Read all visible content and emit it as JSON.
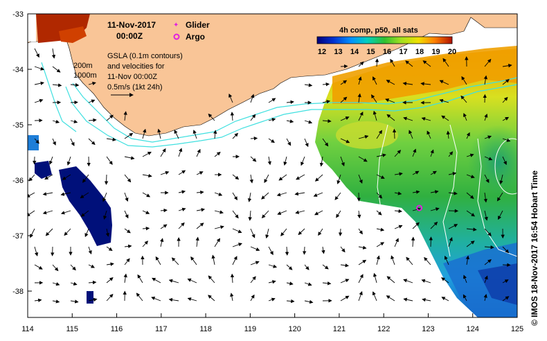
{
  "title": {
    "date": "11-Nov-2017",
    "time": "00:00Z"
  },
  "legend": {
    "glider": "Glider",
    "argo": "Argo",
    "glider_color": "#e020e0",
    "argo_color": "#e020e0"
  },
  "annotation": {
    "line1": "GSLA (0.1m contours)",
    "line2": "and velocities for",
    "line3": "11-Nov 00:00Z",
    "line4": "0.5m/s (1kt 24h)",
    "depth1": "200m",
    "depth2": "1000m"
  },
  "colorbar": {
    "title": "4h comp, p50, all sats",
    "ticks": [
      "12",
      "13",
      "14",
      "15",
      "16",
      "17",
      "18",
      "19",
      "20"
    ]
  },
  "axes": {
    "x_ticks": [
      "114",
      "115",
      "116",
      "117",
      "118",
      "119",
      "120",
      "121",
      "122",
      "123",
      "124",
      "125"
    ],
    "y_ticks": [
      "-33",
      "-34",
      "-35",
      "-36",
      "-37",
      "-38"
    ]
  },
  "credit": "©  IMOS 18-Nov-2017 16:54 Hobart Time",
  "colors": {
    "land": "#f9c597",
    "bathymetry": "#40e0e0",
    "contour": "#ffffff"
  },
  "argo_float": {
    "lon": 122.8,
    "lat": -36.5
  }
}
